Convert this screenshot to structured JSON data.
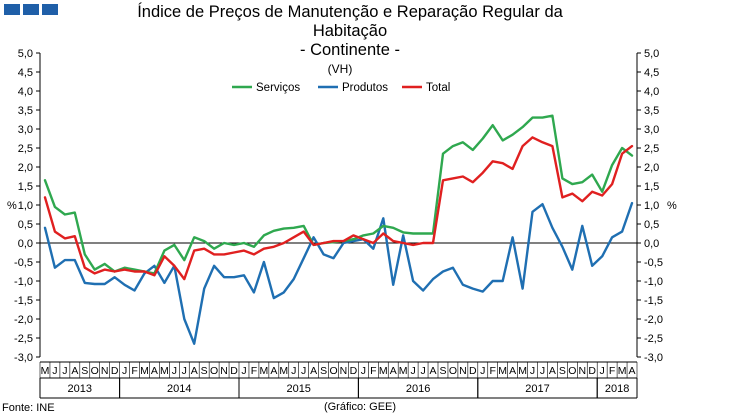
{
  "header": {
    "title_line1": "Índice de Preços de Manutenção e Reparação Regular da",
    "title_line2": "Habitação",
    "title_line3": "- Continente -",
    "unit": "(VH)"
  },
  "footer": {
    "source": "Fonte: INE",
    "credit": "(Gráfico: GEE)"
  },
  "colors": {
    "servicos": "#2fa84f",
    "produtos": "#1f6fb2",
    "total": "#e02020",
    "logo": "#1f5fa8"
  },
  "chart_data": {
    "type": "line",
    "title": "Índice de Preços de Manutenção e Reparação Regular da Habitação - Continente -",
    "ylabel_left": "%",
    "ylabel_right": "%",
    "ylim": [
      -3.0,
      5.0
    ],
    "y_ticks": [
      "5,0",
      "4,5",
      "4,0",
      "3,5",
      "3,0",
      "2,5",
      "2,0",
      "1,5",
      "1,0",
      "0,5",
      "0,0",
      "-0,5",
      "-1,0",
      "-1,5",
      "-2,0",
      "-2,5",
      "-3,0"
    ],
    "month_labels": [
      "M",
      "J",
      "J",
      "A",
      "S",
      "O",
      "N",
      "D",
      "J",
      "F",
      "M",
      "A",
      "M",
      "J",
      "J",
      "A",
      "S",
      "O",
      "N",
      "D",
      "J",
      "F",
      "M",
      "A",
      "M",
      "J",
      "J",
      "A",
      "S",
      "O",
      "N",
      "D",
      "J",
      "F",
      "M",
      "A",
      "M",
      "J",
      "J",
      "A",
      "S",
      "O",
      "N",
      "D",
      "J",
      "F",
      "M",
      "A",
      "M",
      "J",
      "J",
      "A",
      "S",
      "O",
      "N",
      "D",
      "J",
      "F",
      "M",
      "A"
    ],
    "years": [
      {
        "label": "2013",
        "start": 0,
        "end": 7
      },
      {
        "label": "2014",
        "start": 8,
        "end": 19
      },
      {
        "label": "2015",
        "start": 20,
        "end": 31
      },
      {
        "label": "2016",
        "start": 32,
        "end": 43
      },
      {
        "label": "2017",
        "start": 44,
        "end": 55
      },
      {
        "label": "2018",
        "start": 56,
        "end": 59
      }
    ],
    "legend": [
      "Serviços",
      "Produtos",
      "Total"
    ],
    "series": [
      {
        "name": "Serviços",
        "values": [
          1.65,
          0.95,
          0.75,
          0.8,
          -0.3,
          -0.7,
          -0.55,
          -0.75,
          -0.65,
          -0.7,
          -0.75,
          -0.8,
          -0.2,
          -0.05,
          -0.45,
          0.15,
          0.05,
          -0.15,
          0.0,
          -0.05,
          0.0,
          -0.1,
          0.2,
          0.32,
          0.38,
          0.4,
          0.45,
          -0.05,
          0.0,
          0.02,
          0.05,
          0.1,
          0.2,
          0.25,
          0.45,
          0.4,
          0.28,
          0.25,
          0.25,
          0.25,
          2.35,
          2.55,
          2.65,
          2.45,
          2.75,
          3.1,
          2.7,
          2.85,
          3.05,
          3.3,
          3.3,
          3.35,
          1.7,
          1.55,
          1.6,
          1.8,
          1.35,
          2.05,
          2.5,
          2.3
        ]
      },
      {
        "name": "Produtos",
        "values": [
          0.4,
          -0.65,
          -0.45,
          -0.45,
          -1.05,
          -1.08,
          -1.08,
          -0.9,
          -1.1,
          -1.25,
          -0.8,
          -0.6,
          -1.05,
          -0.6,
          -2.0,
          -2.65,
          -1.2,
          -0.6,
          -0.9,
          -0.9,
          -0.85,
          -1.3,
          -0.5,
          -1.45,
          -1.3,
          -0.95,
          -0.4,
          0.15,
          -0.3,
          -0.4,
          0.0,
          0.05,
          0.1,
          -0.15,
          0.65,
          -1.1,
          0.2,
          -1.0,
          -1.25,
          -0.95,
          -0.75,
          -0.65,
          -1.1,
          -1.2,
          -1.28,
          -1.0,
          -1.0,
          0.15,
          -1.2,
          0.82,
          1.02,
          0.4,
          -0.1,
          -0.7,
          0.45,
          -0.6,
          -0.35,
          0.15,
          0.3,
          1.05
        ]
      },
      {
        "name": "Total",
        "values": [
          1.2,
          0.3,
          0.12,
          0.18,
          -0.65,
          -0.8,
          -0.7,
          -0.75,
          -0.7,
          -0.75,
          -0.75,
          -0.85,
          -0.35,
          -0.6,
          -0.95,
          -0.2,
          -0.15,
          -0.3,
          -0.3,
          -0.25,
          -0.2,
          -0.3,
          -0.15,
          -0.1,
          0.0,
          0.15,
          0.3,
          -0.05,
          0.0,
          0.05,
          0.05,
          0.2,
          0.1,
          0.0,
          0.25,
          0.05,
          0.0,
          -0.05,
          0.0,
          0.0,
          1.65,
          1.7,
          1.75,
          1.6,
          1.85,
          2.15,
          2.1,
          1.95,
          2.55,
          2.78,
          2.65,
          2.55,
          1.2,
          1.3,
          1.1,
          1.35,
          1.25,
          1.55,
          2.35,
          2.55
        ]
      }
    ]
  }
}
